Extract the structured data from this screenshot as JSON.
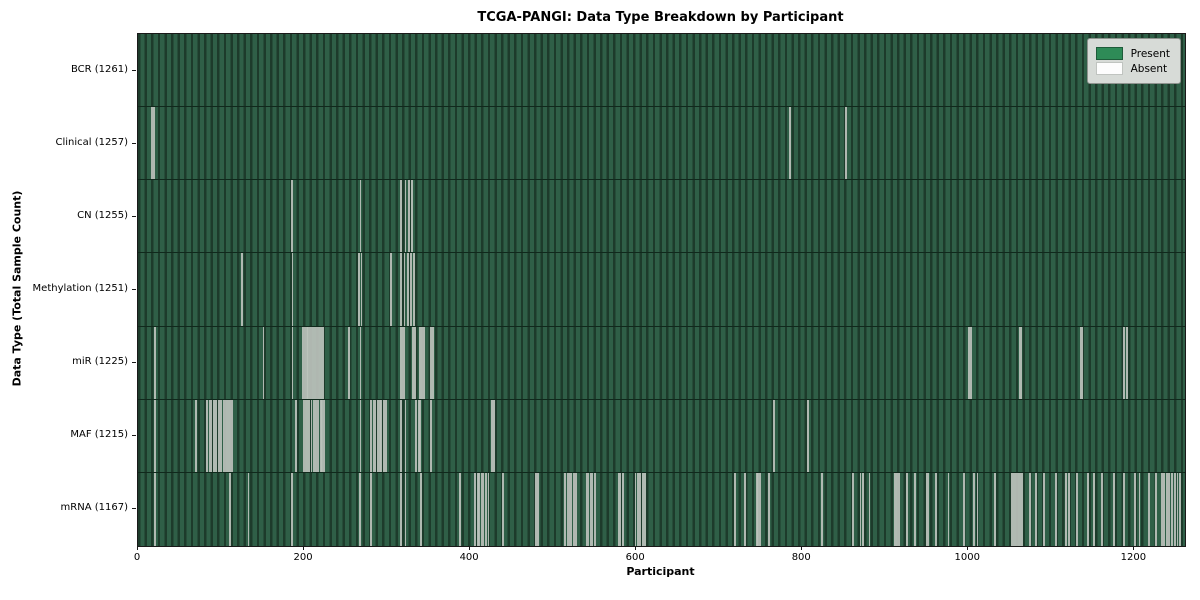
{
  "figure": {
    "title": "TCGA-PANGI: Data Type Breakdown by Participant",
    "xlabel": "Participant",
    "ylabel": "Data Type (Total Sample Count)"
  },
  "legend": {
    "present_label": "Present",
    "absent_label": "Absent"
  },
  "colors": {
    "present_green": "#2e8b57",
    "absent_white": "#ffffff",
    "bar_field_light": "#2f5f47",
    "bar_field_dark": "#1d3b2b",
    "gap_line": "#bcc2bc",
    "legend_bg": "#d7dbd7"
  },
  "chart_data": {
    "type": "heatmap",
    "title": "TCGA-PANGI: Data Type Breakdown by Participant",
    "xlabel": "Participant",
    "ylabel": "Data Type (Total Sample Count)",
    "legend": [
      "Present",
      "Absent"
    ],
    "legend_position": "upper right",
    "grid": false,
    "n_participants": 1261,
    "x_range": [
      0,
      1261
    ],
    "x_ticks": [
      0,
      200,
      400,
      600,
      800,
      1000,
      1200
    ],
    "rows": [
      {
        "label": "BCR (1261)",
        "data_type": "BCR",
        "total_sample_count": 1261,
        "absent_count": 0,
        "absent_participants": []
      },
      {
        "label": "Clinical (1257)",
        "data_type": "Clinical",
        "total_sample_count": 1257,
        "absent_count": 4,
        "absent_participants": [
          16,
          18,
          784,
          852
        ]
      },
      {
        "label": "CN (1255)",
        "data_type": "CN",
        "total_sample_count": 1255,
        "absent_count": 6,
        "absent_participants": [
          184,
          267,
          316,
          321,
          325,
          329
        ]
      },
      {
        "label": "Methylation (1251)",
        "data_type": "Methylation",
        "total_sample_count": 1251,
        "absent_count": 10,
        "absent_participants": [
          124,
          185,
          265,
          268,
          304,
          316,
          320,
          324,
          328,
          331
        ]
      },
      {
        "label": "miR (1225)",
        "data_type": "miR",
        "total_sample_count": 1225,
        "absent_count": 36,
        "absent_participants": [
          19,
          150,
          185,
          198,
          200,
          202,
          204,
          206,
          208,
          210,
          212,
          214,
          216,
          218,
          220,
          222,
          253,
          267,
          316,
          318,
          320,
          330,
          333,
          339,
          341,
          343,
          352,
          354,
          1000,
          1002,
          1061,
          1063,
          1134,
          1136,
          1186,
          1190
        ]
      },
      {
        "label": "MAF (1215)",
        "data_type": "MAF",
        "total_sample_count": 1215,
        "absent_count": 46,
        "absent_participants": [
          19,
          69,
          82,
          85,
          87,
          90,
          93,
          96,
          99,
          102,
          104,
          106,
          108,
          110,
          112,
          189,
          199,
          201,
          203,
          205,
          208,
          211,
          213,
          216,
          219,
          221,
          223,
          267,
          280,
          283,
          285,
          288,
          290,
          292,
          295,
          298,
          316,
          321,
          334,
          337,
          339,
          352,
          425,
          428,
          765,
          806
        ]
      },
      {
        "label": "mRNA (1167)",
        "data_type": "mRNA",
        "total_sample_count": 1167,
        "absent_count": 94,
        "absent_participants": [
          19,
          110,
          132,
          184,
          266,
          280,
          316,
          321,
          340,
          387,
          405,
          408,
          410,
          413,
          415,
          418,
          421,
          439,
          478,
          481,
          513,
          517,
          519,
          521,
          524,
          526,
          539,
          541,
          544,
          546,
          549,
          578,
          580,
          583,
          598,
          601,
          604,
          607,
          610,
          718,
          730,
          744,
          746,
          748,
          759,
          823,
          860,
          869,
          872,
          880,
          911,
          913,
          915,
          925,
          935,
          949,
          951,
          960,
          975,
          994,
          1006,
          1010,
          1031,
          1051,
          1053,
          1055,
          1057,
          1059,
          1061,
          1064,
          1073,
          1080,
          1090,
          1105,
          1117,
          1120,
          1130,
          1143,
          1150,
          1160,
          1174,
          1186,
          1200,
          1205,
          1217,
          1225,
          1232,
          1235,
          1238,
          1241,
          1244,
          1248,
          1251,
          1254
        ]
      }
    ]
  }
}
